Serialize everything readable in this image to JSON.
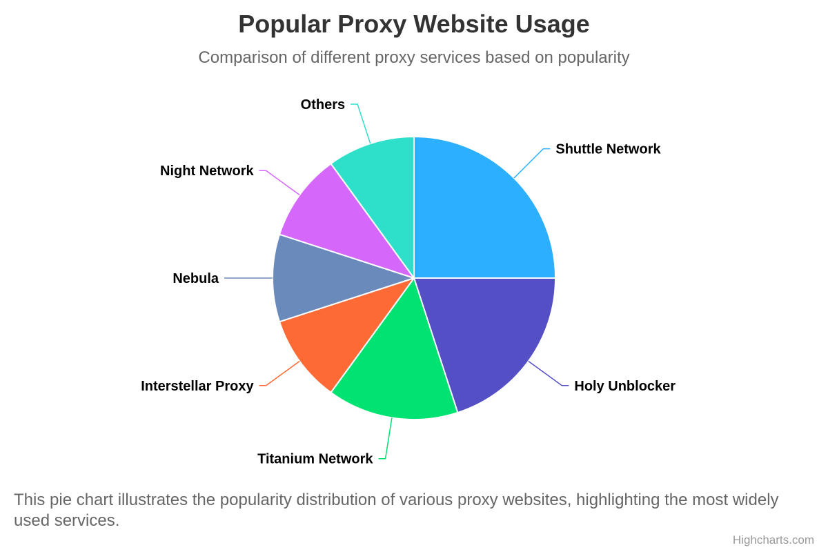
{
  "chart_data": {
    "type": "pie",
    "title": "Popular Proxy Website Usage",
    "subtitle": "Comparison of different proxy services based on popularity",
    "caption": "This pie chart illustrates the popularity distribution of various proxy websites, highlighting the most widely used services.",
    "slices": [
      {
        "name": "Shuttle Network",
        "value": 25,
        "color": "#2caffe"
      },
      {
        "name": "Holy Unblocker",
        "value": 20,
        "color": "#544fc5"
      },
      {
        "name": "Titanium Network",
        "value": 15,
        "color": "#00e272"
      },
      {
        "name": "Interstellar Proxy",
        "value": 10,
        "color": "#fe6a35"
      },
      {
        "name": "Nebula",
        "value": 10,
        "color": "#6b8abc"
      },
      {
        "name": "Night Network",
        "value": 10,
        "color": "#d568fb"
      },
      {
        "name": "Others",
        "value": 10,
        "color": "#2ee0ca"
      }
    ],
    "start_angle": "12 o'clock",
    "direction": "clockwise",
    "legend": false
  },
  "credits": "Highcharts.com"
}
